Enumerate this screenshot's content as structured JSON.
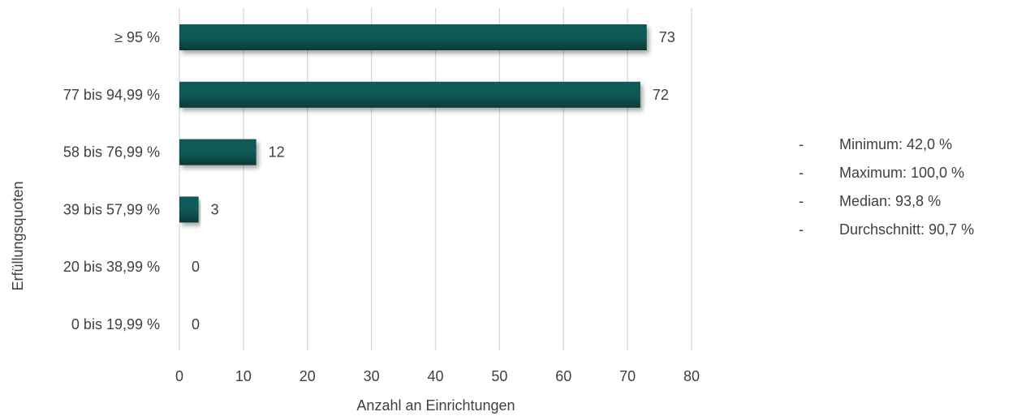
{
  "chart_data": {
    "type": "bar",
    "orientation": "horizontal",
    "categories": [
      "≥ 95 %",
      "77 bis 94,99 %",
      "58 bis 76,99 %",
      "39 bis 57,99 %",
      "20 bis 38,99 %",
      "0 bis 19,99 %"
    ],
    "values": [
      73,
      72,
      12,
      3,
      0,
      0
    ],
    "data_labels": [
      "73",
      "72",
      "12",
      "3",
      "0",
      "0"
    ],
    "xlabel": "Anzahl an Einrichtungen",
    "ylabel": "Erfüllungsquoten",
    "xlim": [
      0,
      80
    ],
    "xticks": [
      "0",
      "10",
      "20",
      "30",
      "40",
      "50",
      "60",
      "70",
      "80"
    ],
    "grid": "vertical",
    "legend": "none",
    "bar_color": "#0d5a56",
    "bar_color_dark": "#063a37",
    "grid_color": "#d9d9d9"
  },
  "stats": {
    "bullet": "-",
    "items": [
      "Minimum: 42,0 %",
      "Maximum: 100,0 %",
      "Median: 93,8 %",
      "Durchschnitt: 90,7 %"
    ]
  }
}
